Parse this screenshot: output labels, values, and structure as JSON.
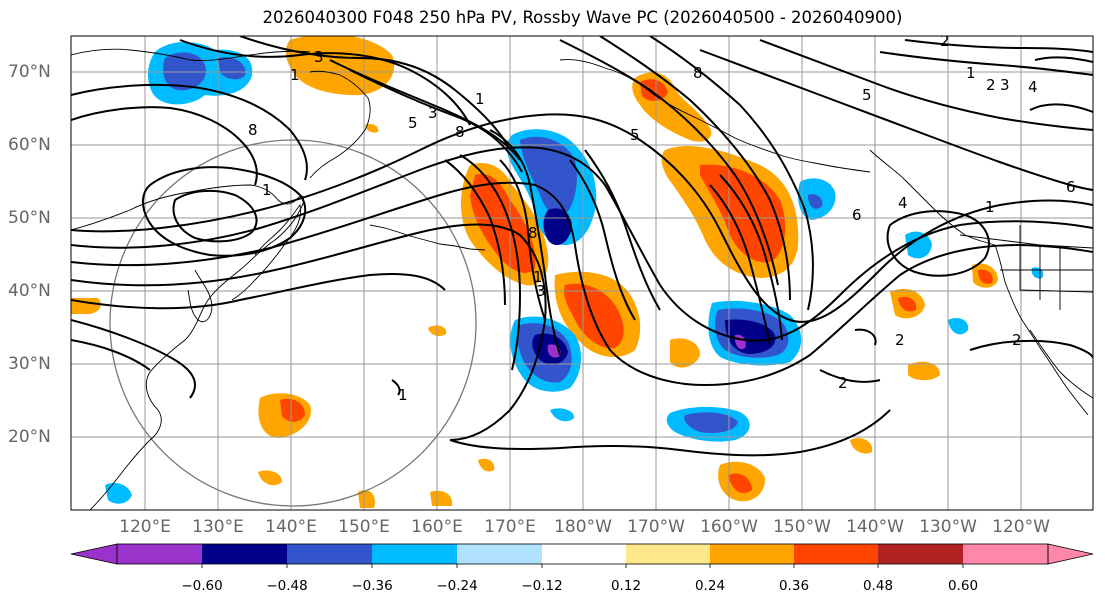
{
  "title": "2026040300 F048 250 hPa PV, Rossby Wave PC (2026040500 - 2026040900)",
  "latitude_labels": [
    "70°N",
    "60°N",
    "50°N",
    "40°N",
    "30°N",
    "20°N"
  ],
  "longitude_labels": [
    "120°E",
    "130°E",
    "140°E",
    "150°E",
    "160°E",
    "170°E",
    "180°W",
    "170°W",
    "160°W",
    "150°W",
    "140°W",
    "130°W",
    "120°W"
  ],
  "colorbar": {
    "tick_labels": [
      "−0.60",
      "−0.48",
      "−0.36",
      "−0.24",
      "−0.12",
      "0.12",
      "0.24",
      "0.36",
      "0.48",
      "0.60"
    ],
    "colors": [
      "#9933cc",
      "#000088",
      "#3355cc",
      "#00bbff",
      "#b0e2ff",
      "#ffffff",
      "#ffe88a",
      "#ffa500",
      "#ff4500",
      "#b22222",
      "#ff88aa"
    ]
  },
  "contour_labels": [
    "8",
    "1",
    "5",
    "8",
    "3",
    "3",
    "1",
    "8",
    "5",
    "1",
    "5",
    "8",
    "6",
    "4",
    "1",
    "6",
    "2",
    "1",
    "2",
    "3",
    "4",
    "1",
    "2",
    "1",
    "2",
    "3",
    "2"
  ],
  "colors": {
    "land_outline": "#000000",
    "grid": "#999999",
    "range_ring": "#777777",
    "contour": "#000000"
  }
}
